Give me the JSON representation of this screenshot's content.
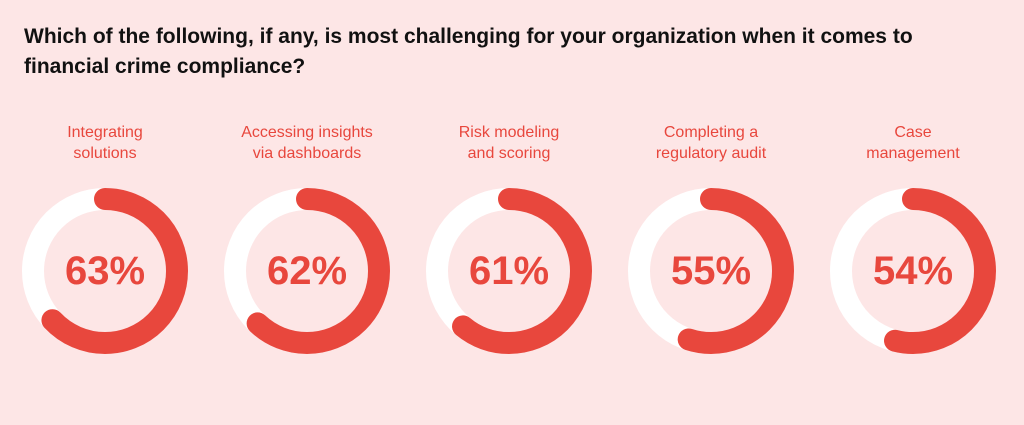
{
  "question": "Which of the following, if any, is most challenging for your organization when it comes to financial crime compliance?",
  "colors": {
    "background": "#fde6e6",
    "track": "#ffffff",
    "accent": "#e8473d",
    "title": "#111111"
  },
  "chart_data": {
    "type": "pie",
    "subtype": "donut",
    "title": "Which of the following, if any, is most challenging for your organization when it comes to financial crime compliance?",
    "unit": "%",
    "categories": [
      "Integrating\nsolutions",
      "Accessing insights\nvia dashboards",
      "Risk modeling\nand scoring",
      "Completing a\nregulatory audit",
      "Case\nmanagement"
    ],
    "values": [
      63,
      62,
      61,
      55,
      54
    ],
    "value_labels": [
      "63%",
      "62%",
      "61%",
      "55%",
      "54%"
    ]
  }
}
